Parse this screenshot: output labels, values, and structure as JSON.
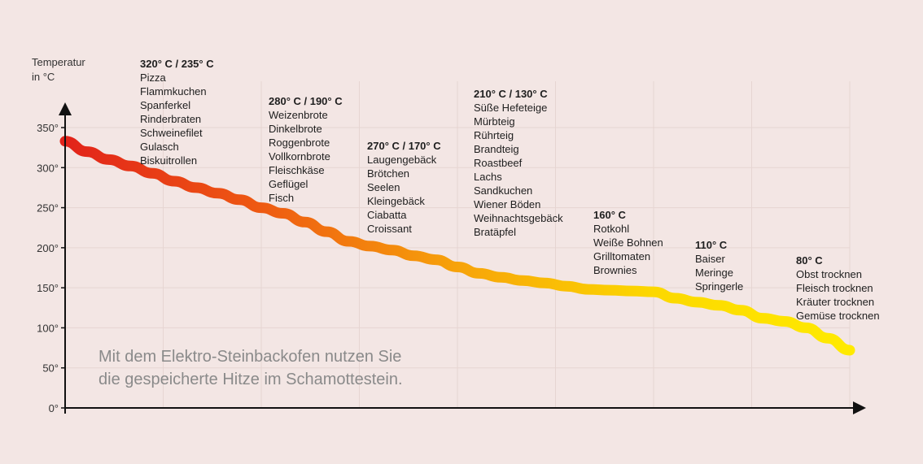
{
  "chart_data": {
    "type": "line",
    "ylabel_lines": [
      "Temperatur",
      "in °C"
    ],
    "yticks": [
      {
        "value": 0,
        "label": "0°"
      },
      {
        "value": 50,
        "label": "50°"
      },
      {
        "value": 100,
        "label": "100°"
      },
      {
        "value": 150,
        "label": "150°"
      },
      {
        "value": 200,
        "label": "200°"
      },
      {
        "value": 250,
        "label": "250°"
      },
      {
        "value": 300,
        "label": "300°"
      },
      {
        "value": 350,
        "label": "350°"
      }
    ],
    "ylim": [
      0,
      370
    ],
    "grid": true,
    "series": [
      {
        "values": [
          333,
          320,
          310,
          302,
          293,
          283,
          275,
          268,
          260,
          250,
          243,
          232,
          220,
          208,
          202,
          197,
          190,
          185,
          176,
          168,
          163,
          159,
          156,
          152,
          148,
          147,
          146,
          145,
          137,
          132,
          128,
          122,
          112,
          108,
          100,
          87,
          72
        ]
      }
    ],
    "gradient_colors": [
      "#e2231a",
      "#ee5a12",
      "#f7a30a",
      "#fcd800",
      "#ffea00"
    ],
    "groups": [
      {
        "heading": "320° C / 235° C",
        "items": [
          "Pizza",
          "Flammkuchen",
          "Spanferkel",
          "Rinderbraten",
          "Schweinefilet",
          "Gulasch",
          "Biskuitrollen"
        ]
      },
      {
        "heading": "280° C / 190° C",
        "items": [
          "Weizenbrote",
          "Dinkelbrote",
          "Roggenbrote",
          "Vollkornbrote",
          "Fleischkäse",
          "Geflügel",
          "Fisch"
        ]
      },
      {
        "heading": "270° C / 170° C",
        "items": [
          "Laugengebäck",
          "Brötchen",
          "Seelen",
          "Kleingebäck",
          "Ciabatta",
          "Croissant"
        ]
      },
      {
        "heading": "210° C / 130° C",
        "items": [
          "Süße Hefeteige",
          "Mürbteig",
          "Rührteig",
          "Brandteig",
          "Roastbeef",
          "Lachs",
          "Sandkuchen",
          "Wiener Böden",
          "Weihnachtsgebäck",
          "Bratäpfel"
        ]
      },
      {
        "heading": "160° C",
        "items": [
          "Rotkohl",
          "Weiße Bohnen",
          "Grilltomaten",
          "Brownies"
        ]
      },
      {
        "heading": "110° C",
        "items": [
          "Baiser",
          "Meringe",
          "Springerle"
        ]
      },
      {
        "heading": "80° C",
        "items": [
          "Obst trocknen",
          "Fleisch trocknen",
          "Kräuter trocknen",
          "Gemüse trocknen"
        ]
      }
    ],
    "caption": [
      "Mit dem Elektro-Steinbackofen nutzen Sie",
      "die gespeicherte Hitze im Schamottestein."
    ]
  }
}
